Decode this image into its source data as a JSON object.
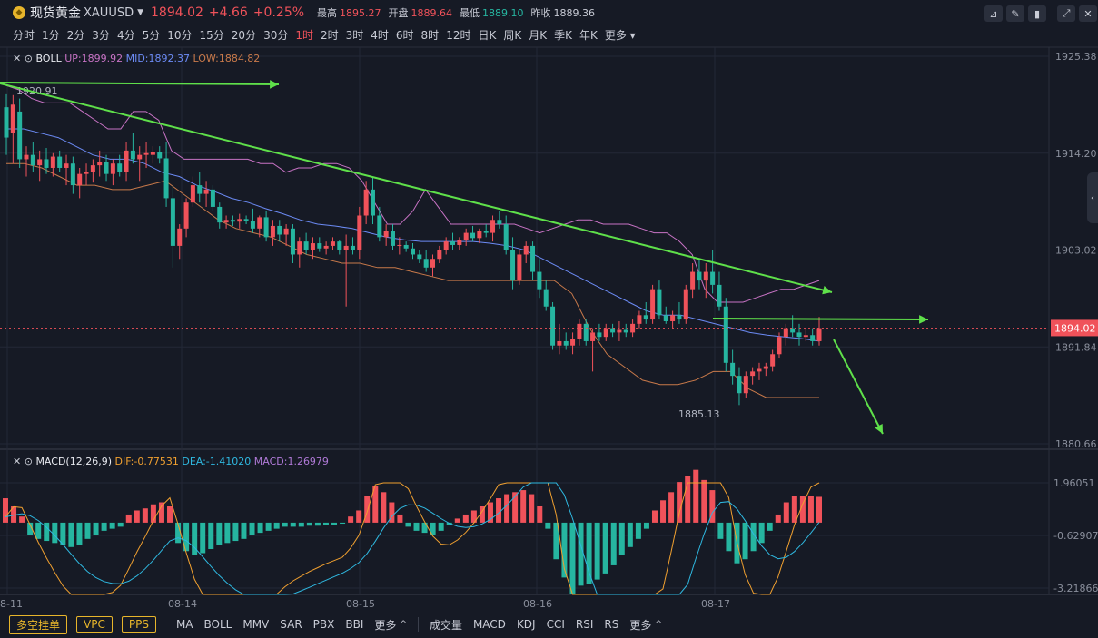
{
  "header": {
    "name": "现货黄金",
    "symbol": "XAUUSD",
    "price": "1894.02",
    "change": "+4.66",
    "change_pct": "+0.25%",
    "high_label": "最高",
    "high": "1895.27",
    "open_label": "开盘",
    "open": "1889.64",
    "low_label": "最低",
    "low": "1889.10",
    "prev_label": "昨收",
    "prev": "1889.36"
  },
  "periods": [
    "分时",
    "1分",
    "2分",
    "3分",
    "4分",
    "5分",
    "10分",
    "15分",
    "20分",
    "30分",
    "1时",
    "2时",
    "3时",
    "4时",
    "6时",
    "8时",
    "12时",
    "日K",
    "周K",
    "月K",
    "季K",
    "年K",
    "更多"
  ],
  "active_period": "1时",
  "boll": {
    "name": "BOLL",
    "up": "UP:1899.92",
    "mid": "MID:1892.37",
    "low": "LOW:1884.82"
  },
  "macd": {
    "name": "MACD(12,26,9)",
    "dif": "DIF:-0.77531",
    "dea": "DEA:-1.41020",
    "macd": "MACD:1.26979"
  },
  "main_axis": [
    "1925.38",
    "1914.20",
    "1903.02",
    "1891.84",
    "1880.66"
  ],
  "macd_axis": [
    "1.96051",
    "-0.62907",
    "-3.21866"
  ],
  "current_price_tag": "1894.02",
  "annotations": {
    "high_label": "1920.91",
    "low_label": "1885.13"
  },
  "x_labels": [
    "08-11",
    "08-14",
    "08-15",
    "08-16",
    "08-17"
  ],
  "bottom": {
    "buttons": [
      "多空挂单",
      "VPC",
      "PPS"
    ],
    "main_indicators": [
      "MA",
      "BOLL",
      "MMV",
      "SAR",
      "PBX",
      "BBI",
      "更多"
    ],
    "sub_indicators": [
      "成交量",
      "MACD",
      "KDJ",
      "CCI",
      "RSI",
      "RS",
      "更多"
    ]
  },
  "colors": {
    "up": "#f0525a",
    "down": "#26b5a0",
    "boll_up": "#c873c5",
    "boll_mid": "#6c8bf5",
    "boll_low": "#c8794a",
    "dif": "#f0a030",
    "dea": "#2fb8e0",
    "trend": "#5fe04a"
  },
  "chart_data": {
    "type": "candlestick",
    "ylim": [
      1880.66,
      1925.38
    ],
    "candles": [
      {
        "o": 1919.5,
        "h": 1921.0,
        "l": 1914.0,
        "c": 1916.0
      },
      {
        "o": 1916.5,
        "h": 1920.9,
        "l": 1913.0,
        "c": 1919.8
      },
      {
        "o": 1919.0,
        "h": 1920.5,
        "l": 1912.5,
        "c": 1913.5
      },
      {
        "o": 1913.5,
        "h": 1915.0,
        "l": 1911.5,
        "c": 1914.0
      },
      {
        "o": 1914.0,
        "h": 1915.5,
        "l": 1912.0,
        "c": 1912.8
      },
      {
        "o": 1912.8,
        "h": 1914.5,
        "l": 1911.0,
        "c": 1913.5
      },
      {
        "o": 1913.5,
        "h": 1914.8,
        "l": 1911.8,
        "c": 1912.5
      },
      {
        "o": 1912.5,
        "h": 1914.2,
        "l": 1911.5,
        "c": 1913.8
      },
      {
        "o": 1913.8,
        "h": 1914.5,
        "l": 1912.0,
        "c": 1912.5
      },
      {
        "o": 1912.5,
        "h": 1914.0,
        "l": 1910.5,
        "c": 1913.0
      },
      {
        "o": 1913.0,
        "h": 1913.8,
        "l": 1909.5,
        "c": 1910.5
      },
      {
        "o": 1910.5,
        "h": 1912.5,
        "l": 1909.0,
        "c": 1911.8
      },
      {
        "o": 1911.8,
        "h": 1913.0,
        "l": 1910.5,
        "c": 1912.0
      },
      {
        "o": 1912.0,
        "h": 1913.5,
        "l": 1910.8,
        "c": 1912.8
      },
      {
        "o": 1912.8,
        "h": 1914.5,
        "l": 1911.5,
        "c": 1913.2
      },
      {
        "o": 1913.2,
        "h": 1914.0,
        "l": 1911.0,
        "c": 1911.8
      },
      {
        "o": 1911.8,
        "h": 1913.5,
        "l": 1910.5,
        "c": 1913.0
      },
      {
        "o": 1913.0,
        "h": 1914.0,
        "l": 1911.5,
        "c": 1912.0
      },
      {
        "o": 1912.0,
        "h": 1915.5,
        "l": 1911.0,
        "c": 1914.5
      },
      {
        "o": 1914.5,
        "h": 1916.5,
        "l": 1913.0,
        "c": 1913.5
      },
      {
        "o": 1913.5,
        "h": 1915.0,
        "l": 1911.0,
        "c": 1914.0
      },
      {
        "o": 1914.0,
        "h": 1915.5,
        "l": 1912.5,
        "c": 1914.2
      },
      {
        "o": 1914.0,
        "h": 1915.0,
        "l": 1913.0,
        "c": 1914.3
      },
      {
        "o": 1914.3,
        "h": 1915.0,
        "l": 1913.0,
        "c": 1913.6
      },
      {
        "o": 1913.6,
        "h": 1915.5,
        "l": 1908.0,
        "c": 1909.0
      },
      {
        "o": 1909.0,
        "h": 1910.5,
        "l": 1901.0,
        "c": 1903.5
      },
      {
        "o": 1903.5,
        "h": 1906.0,
        "l": 1902.0,
        "c": 1905.5
      },
      {
        "o": 1905.5,
        "h": 1909.0,
        "l": 1904.5,
        "c": 1908.5
      },
      {
        "o": 1908.5,
        "h": 1911.5,
        "l": 1908.0,
        "c": 1910.5
      },
      {
        "o": 1910.5,
        "h": 1912.0,
        "l": 1908.5,
        "c": 1909.5
      },
      {
        "o": 1909.5,
        "h": 1911.0,
        "l": 1908.0,
        "c": 1910.0
      },
      {
        "o": 1910.0,
        "h": 1910.5,
        "l": 1907.5,
        "c": 1908.0
      },
      {
        "o": 1908.0,
        "h": 1908.5,
        "l": 1905.5,
        "c": 1906.2
      },
      {
        "o": 1906.2,
        "h": 1907.0,
        "l": 1905.5,
        "c": 1906.5
      },
      {
        "o": 1906.5,
        "h": 1907.0,
        "l": 1905.8,
        "c": 1906.3
      },
      {
        "o": 1906.3,
        "h": 1907.2,
        "l": 1905.5,
        "c": 1906.6
      },
      {
        "o": 1906.6,
        "h": 1907.0,
        "l": 1906.0,
        "c": 1906.4
      },
      {
        "o": 1906.4,
        "h": 1907.8,
        "l": 1905.0,
        "c": 1905.5
      },
      {
        "o": 1905.5,
        "h": 1907.0,
        "l": 1904.5,
        "c": 1906.8
      },
      {
        "o": 1906.8,
        "h": 1907.5,
        "l": 1904.0,
        "c": 1904.5
      },
      {
        "o": 1904.5,
        "h": 1906.5,
        "l": 1903.5,
        "c": 1905.8
      },
      {
        "o": 1905.8,
        "h": 1906.5,
        "l": 1904.0,
        "c": 1904.8
      },
      {
        "o": 1904.8,
        "h": 1906.0,
        "l": 1903.5,
        "c": 1905.5
      },
      {
        "o": 1905.5,
        "h": 1906.0,
        "l": 1901.5,
        "c": 1902.5
      },
      {
        "o": 1902.5,
        "h": 1904.5,
        "l": 1901.0,
        "c": 1904.0
      },
      {
        "o": 1904.0,
        "h": 1905.0,
        "l": 1902.5,
        "c": 1903.0
      },
      {
        "o": 1903.0,
        "h": 1904.5,
        "l": 1902.0,
        "c": 1903.8
      },
      {
        "o": 1903.8,
        "h": 1904.5,
        "l": 1902.8,
        "c": 1903.2
      },
      {
        "o": 1903.2,
        "h": 1904.0,
        "l": 1902.5,
        "c": 1903.5
      },
      {
        "o": 1903.5,
        "h": 1904.5,
        "l": 1903.0,
        "c": 1904.0
      },
      {
        "o": 1904.0,
        "h": 1904.2,
        "l": 1902.5,
        "c": 1903.0
      },
      {
        "o": 1903.0,
        "h": 1904.8,
        "l": 1896.5,
        "c": 1903.5
      },
      {
        "o": 1903.5,
        "h": 1904.5,
        "l": 1902.5,
        "c": 1903.0
      },
      {
        "o": 1903.0,
        "h": 1908.0,
        "l": 1902.0,
        "c": 1907.0
      },
      {
        "o": 1907.0,
        "h": 1911.0,
        "l": 1906.0,
        "c": 1910.0
      },
      {
        "o": 1910.0,
        "h": 1911.5,
        "l": 1906.0,
        "c": 1907.0
      },
      {
        "o": 1907.0,
        "h": 1908.0,
        "l": 1904.0,
        "c": 1904.5
      },
      {
        "o": 1904.5,
        "h": 1906.0,
        "l": 1903.5,
        "c": 1905.2
      },
      {
        "o": 1905.2,
        "h": 1906.0,
        "l": 1903.0,
        "c": 1903.5
      },
      {
        "o": 1903.5,
        "h": 1904.5,
        "l": 1902.5,
        "c": 1903.6
      },
      {
        "o": 1903.6,
        "h": 1904.0,
        "l": 1902.8,
        "c": 1903.2
      },
      {
        "o": 1903.2,
        "h": 1903.8,
        "l": 1902.0,
        "c": 1902.5
      },
      {
        "o": 1902.5,
        "h": 1903.0,
        "l": 1901.5,
        "c": 1902.0
      },
      {
        "o": 1902.0,
        "h": 1903.0,
        "l": 1900.5,
        "c": 1901.0
      },
      {
        "o": 1901.0,
        "h": 1902.5,
        "l": 1900.0,
        "c": 1902.0
      },
      {
        "o": 1902.0,
        "h": 1903.5,
        "l": 1901.5,
        "c": 1903.0
      },
      {
        "o": 1903.0,
        "h": 1904.5,
        "l": 1902.5,
        "c": 1904.0
      },
      {
        "o": 1904.0,
        "h": 1905.0,
        "l": 1903.0,
        "c": 1903.6
      },
      {
        "o": 1903.6,
        "h": 1904.5,
        "l": 1903.0,
        "c": 1904.2
      },
      {
        "o": 1904.2,
        "h": 1905.5,
        "l": 1903.5,
        "c": 1905.0
      },
      {
        "o": 1905.0,
        "h": 1905.8,
        "l": 1904.0,
        "c": 1904.4
      },
      {
        "o": 1904.4,
        "h": 1905.5,
        "l": 1903.8,
        "c": 1905.2
      },
      {
        "o": 1905.2,
        "h": 1906.0,
        "l": 1904.5,
        "c": 1905.0
      },
      {
        "o": 1905.0,
        "h": 1907.0,
        "l": 1904.0,
        "c": 1906.5
      },
      {
        "o": 1906.5,
        "h": 1907.5,
        "l": 1905.5,
        "c": 1906.0
      },
      {
        "o": 1906.0,
        "h": 1907.0,
        "l": 1902.5,
        "c": 1903.0
      },
      {
        "o": 1903.0,
        "h": 1904.5,
        "l": 1898.5,
        "c": 1899.5
      },
      {
        "o": 1899.5,
        "h": 1903.0,
        "l": 1899.0,
        "c": 1902.5
      },
      {
        "o": 1902.5,
        "h": 1904.0,
        "l": 1901.5,
        "c": 1903.5
      },
      {
        "o": 1903.5,
        "h": 1904.0,
        "l": 1899.5,
        "c": 1900.5
      },
      {
        "o": 1900.5,
        "h": 1902.0,
        "l": 1897.5,
        "c": 1898.5
      },
      {
        "o": 1898.5,
        "h": 1899.5,
        "l": 1896.0,
        "c": 1896.5
      },
      {
        "o": 1896.5,
        "h": 1897.0,
        "l": 1891.5,
        "c": 1892.0
      },
      {
        "o": 1892.0,
        "h": 1894.5,
        "l": 1891.0,
        "c": 1892.5
      },
      {
        "o": 1892.5,
        "h": 1893.5,
        "l": 1891.5,
        "c": 1892.0
      },
      {
        "o": 1892.0,
        "h": 1893.5,
        "l": 1891.0,
        "c": 1892.8
      },
      {
        "o": 1892.8,
        "h": 1895.0,
        "l": 1892.0,
        "c": 1894.5
      },
      {
        "o": 1894.5,
        "h": 1895.0,
        "l": 1892.0,
        "c": 1892.5
      },
      {
        "o": 1892.5,
        "h": 1894.0,
        "l": 1889.0,
        "c": 1893.5
      },
      {
        "o": 1893.5,
        "h": 1894.5,
        "l": 1892.5,
        "c": 1893.0
      },
      {
        "o": 1893.0,
        "h": 1894.5,
        "l": 1892.5,
        "c": 1894.0
      },
      {
        "o": 1894.0,
        "h": 1894.5,
        "l": 1893.0,
        "c": 1893.5
      },
      {
        "o": 1893.5,
        "h": 1894.8,
        "l": 1892.5,
        "c": 1893.8
      },
      {
        "o": 1893.8,
        "h": 1894.5,
        "l": 1893.0,
        "c": 1893.5
      },
      {
        "o": 1893.5,
        "h": 1895.0,
        "l": 1893.0,
        "c": 1894.5
      },
      {
        "o": 1894.5,
        "h": 1896.0,
        "l": 1894.0,
        "c": 1895.5
      },
      {
        "o": 1895.5,
        "h": 1897.0,
        "l": 1894.5,
        "c": 1895.0
      },
      {
        "o": 1895.0,
        "h": 1899.0,
        "l": 1894.5,
        "c": 1898.5
      },
      {
        "o": 1898.5,
        "h": 1899.5,
        "l": 1895.0,
        "c": 1895.5
      },
      {
        "o": 1895.5,
        "h": 1896.5,
        "l": 1894.5,
        "c": 1894.8
      },
      {
        "o": 1894.8,
        "h": 1896.0,
        "l": 1894.0,
        "c": 1895.5
      },
      {
        "o": 1895.5,
        "h": 1897.0,
        "l": 1894.5,
        "c": 1895.0
      },
      {
        "o": 1895.0,
        "h": 1899.0,
        "l": 1894.5,
        "c": 1898.5
      },
      {
        "o": 1898.5,
        "h": 1901.5,
        "l": 1897.5,
        "c": 1900.5
      },
      {
        "o": 1900.5,
        "h": 1902.0,
        "l": 1898.5,
        "c": 1899.5
      },
      {
        "o": 1899.5,
        "h": 1901.5,
        "l": 1897.5,
        "c": 1900.5
      },
      {
        "o": 1900.5,
        "h": 1903.0,
        "l": 1898.0,
        "c": 1899.0
      },
      {
        "o": 1899.0,
        "h": 1900.5,
        "l": 1896.0,
        "c": 1896.5
      },
      {
        "o": 1896.5,
        "h": 1897.5,
        "l": 1889.0,
        "c": 1890.0
      },
      {
        "o": 1890.0,
        "h": 1891.5,
        "l": 1887.5,
        "c": 1888.5
      },
      {
        "o": 1888.5,
        "h": 1889.5,
        "l": 1885.13,
        "c": 1886.5
      },
      {
        "o": 1886.5,
        "h": 1889.0,
        "l": 1886.0,
        "c": 1888.5
      },
      {
        "o": 1888.5,
        "h": 1889.5,
        "l": 1887.5,
        "c": 1889.0
      },
      {
        "o": 1889.0,
        "h": 1890.0,
        "l": 1888.0,
        "c": 1889.3
      },
      {
        "o": 1889.3,
        "h": 1890.0,
        "l": 1888.5,
        "c": 1889.6
      },
      {
        "o": 1889.6,
        "h": 1891.5,
        "l": 1889.0,
        "c": 1891.0
      },
      {
        "o": 1891.0,
        "h": 1893.5,
        "l": 1890.5,
        "c": 1893.0
      },
      {
        "o": 1893.0,
        "h": 1894.5,
        "l": 1892.0,
        "c": 1894.0
      },
      {
        "o": 1894.0,
        "h": 1895.5,
        "l": 1893.0,
        "c": 1893.5
      },
      {
        "o": 1893.5,
        "h": 1894.5,
        "l": 1892.0,
        "c": 1893.0
      },
      {
        "o": 1893.0,
        "h": 1894.0,
        "l": 1892.5,
        "c": 1893.2
      },
      {
        "o": 1893.2,
        "h": 1894.0,
        "l": 1892.0,
        "c": 1892.5
      },
      {
        "o": 1892.5,
        "h": 1895.3,
        "l": 1892.0,
        "c": 1894.0
      }
    ],
    "boll_up": [
      1922,
      1921.5,
      1920.5,
      1920,
      1920,
      1920,
      1919,
      1918,
      1917,
      1917,
      1919,
      1919,
      1918,
      1914.5,
      1913.5,
      1913.5,
      1913.5,
      1913.5,
      1913.5,
      1913.5,
      1913,
      1913,
      1912,
      1912.5,
      1912.5,
      1913,
      1913,
      1912.5,
      1911,
      1908.5,
      1906,
      1906,
      1907.5,
      1910,
      1908,
      1906,
      1906,
      1906,
      1906,
      1906,
      1906,
      1905.5,
      1905,
      1905.5,
      1906,
      1906.5,
      1906.5,
      1906,
      1906,
      1906,
      1905.5,
      1905,
      1905,
      1904,
      1902.5,
      1898.5,
      1897,
      1897,
      1897,
      1897.5,
      1898,
      1898.5,
      1898.5,
      1899,
      1899.5
    ],
    "boll_mid": [
      1917,
      1917,
      1916.5,
      1916,
      1915,
      1914,
      1913.5,
      1913.5,
      1913,
      1912,
      1911.5,
      1910.5,
      1909.8,
      1909,
      1908.5,
      1907.8,
      1907.2,
      1906.5,
      1906,
      1905.8,
      1905.5,
      1905,
      1904.5,
      1904.2,
      1904,
      1904,
      1904,
      1904,
      1903.8,
      1903.5,
      1903,
      1902,
      1901,
      1900,
      1899,
      1898,
      1897,
      1896,
      1895.5,
      1895.5,
      1895,
      1894.5,
      1894,
      1893.5,
      1893.2,
      1893,
      1892.8,
      1892.5
    ],
    "boll_low": [
      1913,
      1913,
      1912.5,
      1911.5,
      1910.5,
      1910.5,
      1910,
      1910,
      1910.5,
      1911,
      1909.5,
      1908,
      1906.5,
      1905.5,
      1905,
      1904.5,
      1903.5,
      1902.5,
      1902,
      1901.5,
      1901.5,
      1901,
      1901,
      1900.5,
      1900,
      1899.5,
      1899.5,
      1899.5,
      1899.5,
      1899.5,
      1899.5,
      1899.5,
      1898,
      1894,
      1891,
      1889.5,
      1888,
      1887.5,
      1887.5,
      1888,
      1889,
      1889,
      1887,
      1886,
      1886,
      1886,
      1886
    ],
    "macd_hist": [
      1.2,
      0.8,
      0.3,
      -0.6,
      -0.8,
      -0.9,
      -1.0,
      -1.1,
      -1.2,
      -1.1,
      -0.8,
      -0.6,
      -0.4,
      -0.3,
      -0.2,
      0.4,
      0.6,
      0.7,
      0.9,
      1.0,
      0.8,
      -1.0,
      -1.4,
      -1.6,
      -1.5,
      -1.3,
      -1.1,
      -1.0,
      -0.9,
      -0.8,
      -0.6,
      -0.5,
      -0.4,
      -0.3,
      -0.2,
      -0.2,
      -0.2,
      -0.15,
      -0.15,
      -0.1,
      -0.1,
      -0.05,
      0.3,
      0.6,
      1.3,
      1.8,
      1.5,
      1.0,
      0.4,
      -0.2,
      -0.4,
      -0.5,
      -0.6,
      -0.4,
      -0.1,
      0.2,
      0.4,
      0.6,
      0.8,
      1.0,
      1.2,
      1.4,
      1.5,
      1.6,
      1.4,
      0.8,
      -0.3,
      -1.8,
      -2.7,
      -3.5,
      -3.1,
      -3.0,
      -2.8,
      -2.5,
      -2.1,
      -1.6,
      -1.2,
      -0.8,
      -0.3,
      0.6,
      1.1,
      1.5,
      2.0,
      2.3,
      2.6,
      2.1,
      1.6,
      -0.8,
      -1.4,
      -2.0,
      -1.8,
      -1.4,
      -1.0,
      -0.4,
      0.4,
      1.0,
      1.3,
      1.3,
      1.3,
      1.27
    ]
  }
}
